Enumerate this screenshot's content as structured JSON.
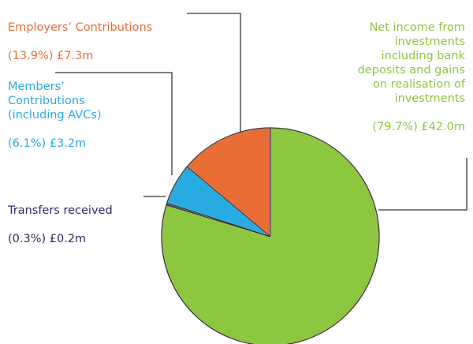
{
  "chart_data": {
    "type": "pie",
    "categories": [
      "Net income from\ninvestments\nincluding bank\ndeposits and gains\non realisation of\ninvestments",
      "Transfers received",
      "Members’\nContributions\n(including AVCs)",
      "Employers’ Contributions"
    ],
    "values": [
      79.7,
      0.3,
      6.1,
      13.9
    ],
    "value_labels": [
      "(79.7%) £42.0m",
      "(0.3%) £0.2m",
      "(6.1%) £3.2m",
      "(13.9%) £7.3m"
    ],
    "colors": [
      "#8dc63f",
      "#2e2a6b",
      "#29abe2",
      "#e86e35"
    ]
  }
}
